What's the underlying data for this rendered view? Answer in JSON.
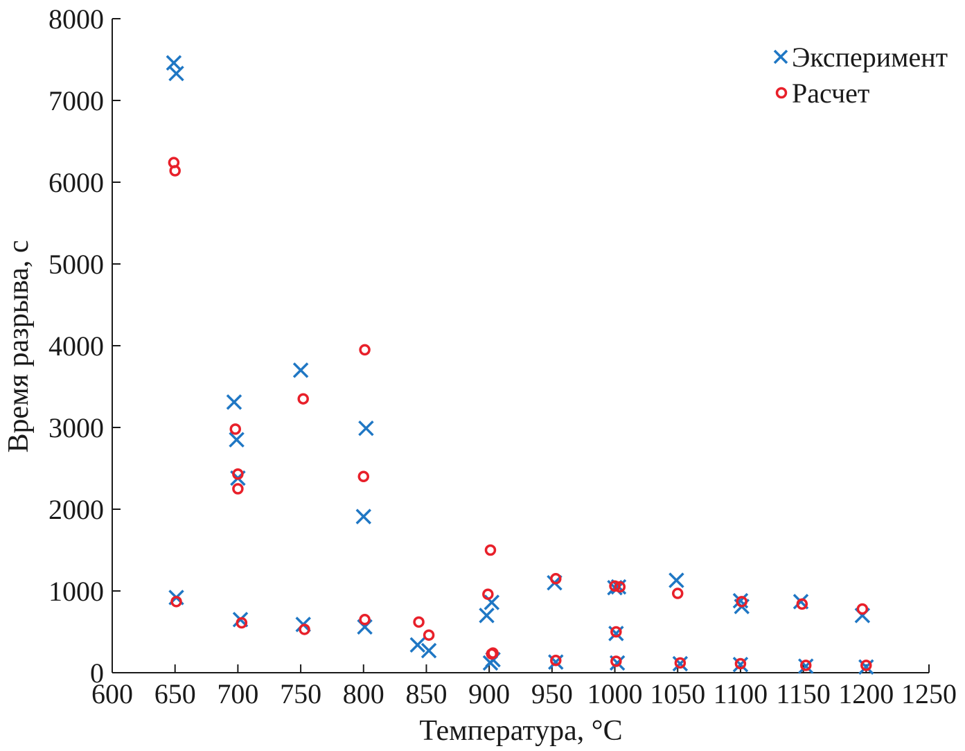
{
  "chart_data": {
    "type": "scatter",
    "title": "",
    "xlabel": "Температура, °C",
    "ylabel": "Время разрыва, с",
    "xlim": [
      600,
      1250
    ],
    "ylim": [
      0,
      8000
    ],
    "xticks": [
      600,
      650,
      700,
      750,
      800,
      850,
      900,
      950,
      1000,
      1050,
      1100,
      1150,
      1200,
      1250
    ],
    "yticks": [
      0,
      1000,
      2000,
      3000,
      4000,
      5000,
      6000,
      7000,
      8000
    ],
    "xtick_labels": [
      "600",
      "650",
      "700",
      "750",
      "800",
      "850",
      "900",
      "950",
      "1000",
      "1050",
      "1100",
      "1150",
      "1200",
      "1250"
    ],
    "ytick_labels": [
      "0",
      "1000",
      "2000",
      "3000",
      "4000",
      "5000",
      "6000",
      "7000",
      "8000"
    ],
    "grid": false,
    "legend_position": "top-right",
    "series": [
      {
        "name": "Эксперимент",
        "marker": "x",
        "color": "#1f77c4",
        "points": [
          [
            649,
            7460
          ],
          [
            651,
            7330
          ],
          [
            651,
            920
          ],
          [
            697,
            3310
          ],
          [
            699,
            2850
          ],
          [
            700,
            2380
          ],
          [
            702,
            650
          ],
          [
            750,
            3700
          ],
          [
            752,
            590
          ],
          [
            800,
            1910
          ],
          [
            802,
            2990
          ],
          [
            801,
            560
          ],
          [
            843,
            340
          ],
          [
            852,
            270
          ],
          [
            898,
            700
          ],
          [
            902,
            860
          ],
          [
            901,
            120
          ],
          [
            903,
            160
          ],
          [
            952,
            1100
          ],
          [
            953,
            130
          ],
          [
            1000,
            1040
          ],
          [
            1003,
            1050
          ],
          [
            1001,
            480
          ],
          [
            1002,
            120
          ],
          [
            1049,
            1130
          ],
          [
            1052,
            110
          ],
          [
            1100,
            880
          ],
          [
            1101,
            810
          ],
          [
            1100,
            100
          ],
          [
            1148,
            870
          ],
          [
            1152,
            80
          ],
          [
            1197,
            700
          ],
          [
            1200,
            70
          ]
        ]
      },
      {
        "name": "Расчет",
        "marker": "o",
        "color": "#e8202a",
        "points": [
          [
            649,
            6240
          ],
          [
            650,
            6140
          ],
          [
            651,
            870
          ],
          [
            698,
            2980
          ],
          [
            700,
            2430
          ],
          [
            700,
            2250
          ],
          [
            703,
            610
          ],
          [
            752,
            3350
          ],
          [
            753,
            530
          ],
          [
            801,
            3950
          ],
          [
            800,
            2400
          ],
          [
            801,
            650
          ],
          [
            844,
            620
          ],
          [
            852,
            460
          ],
          [
            899,
            960
          ],
          [
            901,
            1500
          ],
          [
            902,
            230
          ],
          [
            903,
            240
          ],
          [
            953,
            1150
          ],
          [
            953,
            150
          ],
          [
            1000,
            1060
          ],
          [
            1004,
            1050
          ],
          [
            1001,
            500
          ],
          [
            1001,
            140
          ],
          [
            1050,
            970
          ],
          [
            1052,
            120
          ],
          [
            1101,
            870
          ],
          [
            1100,
            110
          ],
          [
            1149,
            840
          ],
          [
            1152,
            90
          ],
          [
            1197,
            780
          ],
          [
            1200,
            90
          ]
        ]
      }
    ]
  }
}
